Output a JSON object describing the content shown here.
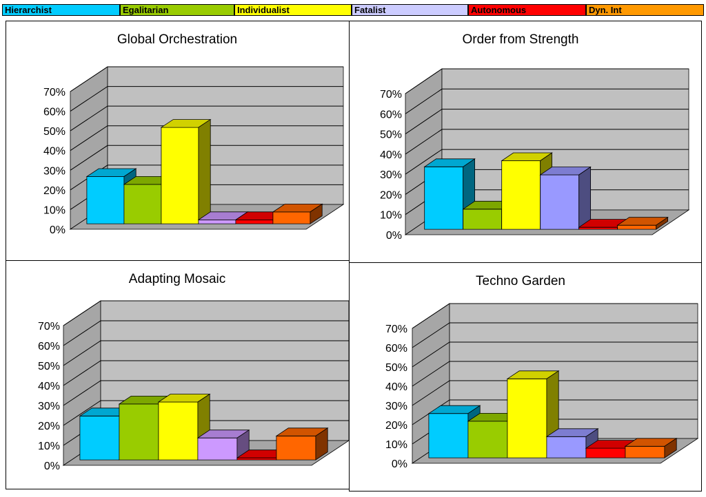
{
  "legend": [
    {
      "label": "Hierarchist",
      "color": "#00CCFF"
    },
    {
      "label": "Egalitarian",
      "color": "#99CC00"
    },
    {
      "label": "Individualist",
      "color": "#FFFF00"
    },
    {
      "label": "Fatalist",
      "color": "#CCCCFF"
    },
    {
      "label": "Autonomous",
      "color": "#FF0000"
    },
    {
      "label": "Dyn. Int",
      "color": "#FF9900"
    }
  ],
  "chart_data": [
    {
      "type": "bar",
      "title": "Global Orchestration",
      "categories": [
        "Hierarchist",
        "Egalitarian",
        "Individualist",
        "Fatalist",
        "Autonomous",
        "Dyn. Int"
      ],
      "values": [
        24,
        20,
        49,
        2,
        2,
        6
      ],
      "ylim": [
        0,
        70
      ],
      "yticks": [
        "0%",
        "10%",
        "20%",
        "30%",
        "40%",
        "50%",
        "60%",
        "70%"
      ],
      "grid": true,
      "style": "3d-column",
      "colors": [
        "#00CCFF",
        "#99CC00",
        "#FFFF00",
        "#CC99FF",
        "#FF0000",
        "#FF6600"
      ]
    },
    {
      "type": "bar",
      "title": "Order from Strength",
      "categories": [
        "Hierarchist",
        "Egalitarian",
        "Individualist",
        "Fatalist",
        "Autonomous",
        "Dyn. Int"
      ],
      "values": [
        31,
        10,
        34,
        27,
        1,
        2
      ],
      "ylim": [
        0,
        70
      ],
      "yticks": [
        "0%",
        "10%",
        "20%",
        "30%",
        "40%",
        "50%",
        "60%",
        "70%"
      ],
      "grid": true,
      "style": "3d-column",
      "colors": [
        "#00CCFF",
        "#99CC00",
        "#FFFF00",
        "#9999FF",
        "#FF0000",
        "#FF6600"
      ]
    },
    {
      "type": "bar",
      "title": "Adapting Mosaic",
      "categories": [
        "Hierarchist",
        "Egalitarian",
        "Individualist",
        "Fatalist",
        "Autonomous",
        "Dyn. Int"
      ],
      "values": [
        22,
        28,
        29,
        11,
        1,
        12
      ],
      "ylim": [
        0,
        70
      ],
      "yticks": [
        "0%",
        "10%",
        "20%",
        "30%",
        "40%",
        "50%",
        "60%",
        "70%"
      ],
      "grid": true,
      "style": "3d-column",
      "colors": [
        "#00CCFF",
        "#99CC00",
        "#FFFF00",
        "#CC99FF",
        "#FF0000",
        "#FF6600"
      ]
    },
    {
      "type": "bar",
      "title": "Techno Garden",
      "categories": [
        "Hierarchist",
        "Egalitarian",
        "Individualist",
        "Fatalist",
        "Autonomous",
        "Dyn. Int"
      ],
      "values": [
        23,
        19,
        41,
        11,
        5,
        6
      ],
      "ylim": [
        0,
        70
      ],
      "yticks": [
        "0%",
        "10%",
        "20%",
        "30%",
        "40%",
        "50%",
        "60%",
        "70%"
      ],
      "grid": true,
      "style": "3d-column",
      "colors": [
        "#00CCFF",
        "#99CC00",
        "#FFFF00",
        "#9999FF",
        "#FF0000",
        "#FF6600"
      ]
    }
  ]
}
